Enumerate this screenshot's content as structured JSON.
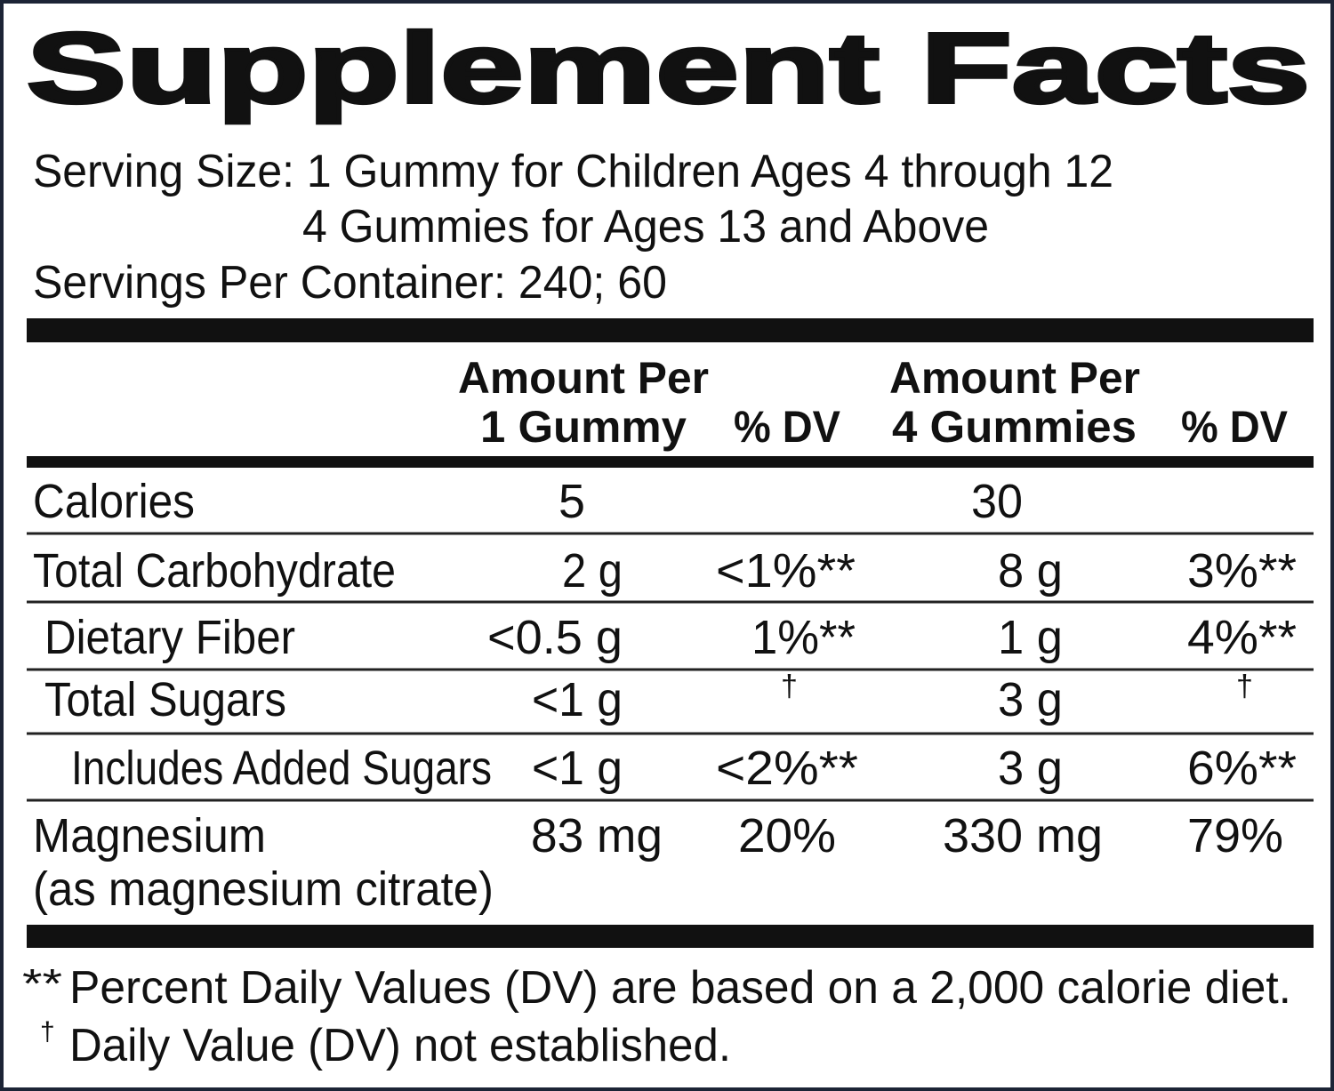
{
  "title": "Supplement Facts",
  "serving_size_lines": [
    "Serving Size: 1 Gummy for Children Ages 4 through 12",
    "4 Gummies for Ages 13 and Above"
  ],
  "servings_per_container": "Servings Per Container: 240; 60",
  "header": {
    "col1": [
      "Amount Per",
      "1 Gummy"
    ],
    "col2": "% DV",
    "col3": [
      "Amount Per",
      "4 Gummies"
    ],
    "col4": "% DV"
  },
  "rows": [
    {
      "label": "Calories",
      "cells": [
        "5",
        null,
        "30",
        null
      ]
    },
    {
      "label": "Total Carbohydrate",
      "cells": [
        "2 g",
        "<1%**",
        "8 g",
        "3%**"
      ]
    },
    {
      "label": "Dietary Fiber",
      "cells": [
        "<0.5 g",
        "1%**",
        "1 g",
        "4%**"
      ]
    },
    {
      "label": "Total Sugars",
      "cells": [
        "<1 g",
        "†",
        "3 g",
        "†"
      ]
    },
    {
      "label": "Includes Added Sugars",
      "cells": [
        "<1 g",
        "<2%**",
        "3 g",
        "6%**"
      ]
    },
    {
      "label": "Magnesium",
      "sublabel": "(as magnesium citrate)",
      "cells": [
        "83 mg",
        "20%",
        "330 mg",
        "79%"
      ]
    }
  ],
  "footnotes": [
    {
      "mark": "**",
      "text": "Percent Daily Values (DV) are based on a 2,000 calorie diet."
    },
    {
      "mark": "†",
      "text": "Daily Value (DV) not established."
    }
  ]
}
